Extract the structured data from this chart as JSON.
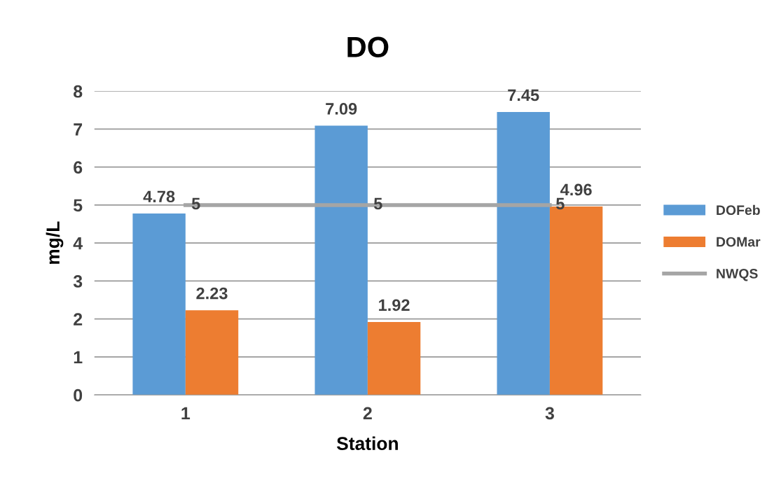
{
  "chart_data": {
    "type": "bar",
    "title": "DO",
    "xlabel": "Station",
    "ylabel": "mg/L",
    "categories": [
      "1",
      "2",
      "3"
    ],
    "series": [
      {
        "name": "DOFeb",
        "color": "#5b9bd5",
        "values": [
          4.78,
          7.09,
          7.45
        ]
      },
      {
        "name": "DOMar",
        "color": "#ed7d31",
        "values": [
          2.23,
          1.92,
          4.96
        ]
      },
      {
        "name": "NWQS",
        "color": "#a5a5a5",
        "type": "line",
        "values": [
          5,
          5,
          5
        ]
      }
    ],
    "ylim": [
      0,
      8
    ],
    "yticks": [
      0,
      1,
      2,
      3,
      4,
      5,
      6,
      7,
      8
    ],
    "grid": "y",
    "legend": "right",
    "data_labels": true,
    "marker": "none",
    "line_style": "solid"
  }
}
